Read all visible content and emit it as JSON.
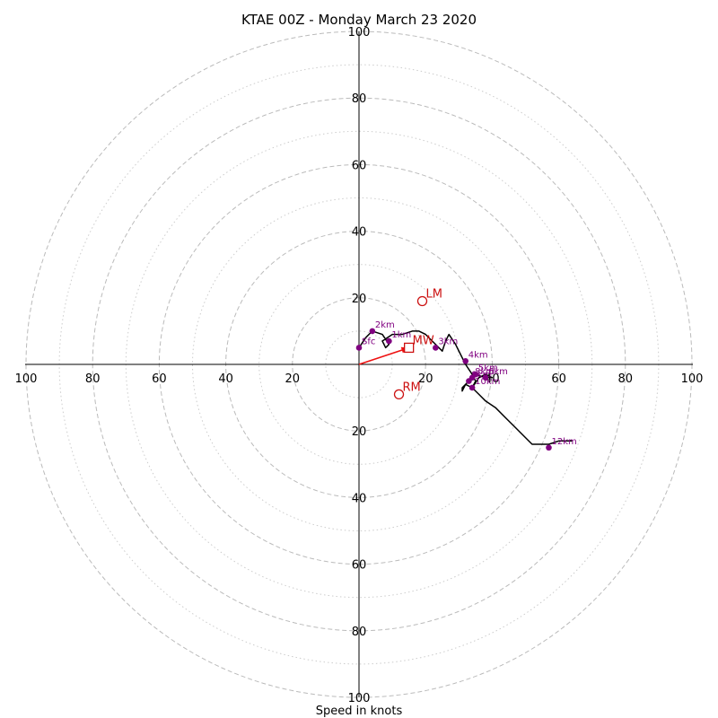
{
  "chart_data": {
    "type": "hodograph",
    "title": "KTAE 00Z - Monday March 23 2020",
    "xlabel": "Speed in knots",
    "ring_range": [
      0,
      100
    ],
    "solid_rings": [
      20,
      40,
      60,
      80,
      100
    ],
    "dotted_rings": [
      10,
      30,
      50,
      70,
      90
    ],
    "axis_tick_labels": {
      "top": [
        "20",
        "40",
        "60",
        "80",
        "100"
      ],
      "bottom": [
        "20",
        "40",
        "60",
        "80",
        "100"
      ],
      "left": [
        "20",
        "40",
        "60",
        "80",
        "100"
      ],
      "right": [
        "20",
        "40",
        "60",
        "80",
        "100"
      ]
    },
    "hodograph_trace": [
      [
        0,
        5
      ],
      [
        2,
        8
      ],
      [
        4,
        10
      ],
      [
        7,
        9
      ],
      [
        9,
        6
      ],
      [
        8,
        5
      ],
      [
        7,
        7
      ],
      [
        10,
        9
      ],
      [
        13,
        9
      ],
      [
        16,
        10
      ],
      [
        18,
        10
      ],
      [
        20,
        9
      ],
      [
        22,
        7
      ],
      [
        24,
        5
      ],
      [
        25,
        4
      ],
      [
        26,
        7
      ],
      [
        27,
        9
      ],
      [
        29,
        6
      ],
      [
        31,
        2
      ],
      [
        32,
        0
      ],
      [
        34,
        -3
      ],
      [
        35,
        -5
      ],
      [
        34,
        -7
      ],
      [
        36,
        -4
      ],
      [
        38,
        -3
      ],
      [
        40,
        -4
      ],
      [
        38,
        -4
      ],
      [
        35,
        -3
      ],
      [
        33,
        -5
      ],
      [
        32,
        -6
      ],
      [
        31,
        -7
      ],
      [
        31,
        -8
      ],
      [
        32,
        -6
      ],
      [
        34,
        -7
      ],
      [
        36,
        -9
      ],
      [
        38,
        -11
      ],
      [
        41,
        -13
      ],
      [
        44,
        -16
      ],
      [
        47,
        -19
      ],
      [
        50,
        -22
      ],
      [
        52,
        -24
      ],
      [
        55,
        -24
      ],
      [
        57,
        -24
      ],
      [
        60,
        -23
      ],
      [
        64,
        -23
      ]
    ],
    "height_levels": [
      {
        "label": "Sfc",
        "u": 0,
        "v": 5
      },
      {
        "label": "1km",
        "u": 9,
        "v": 7
      },
      {
        "label": "2km",
        "u": 4,
        "v": 10
      },
      {
        "label": "3km",
        "u": 23,
        "v": 5
      },
      {
        "label": "4km",
        "u": 32,
        "v": 1
      },
      {
        "label": "5km",
        "u": 35,
        "v": -3
      },
      {
        "label": "6km",
        "u": 38,
        "v": -4
      },
      {
        "label": "8km",
        "u": 34,
        "v": -4
      },
      {
        "label": "9km",
        "u": 33,
        "v": -5
      },
      {
        "label": "10km",
        "u": 34,
        "v": -7
      },
      {
        "label": "12km",
        "u": 57,
        "v": -25
      }
    ],
    "storm_motions": [
      {
        "label": "LM",
        "u": 19,
        "v": 19,
        "marker": "circle"
      },
      {
        "label": "RM",
        "u": 12,
        "v": -9,
        "marker": "circle"
      },
      {
        "label": "MW",
        "u": 15,
        "v": 5,
        "marker": "square"
      }
    ],
    "mean_wind_vector": {
      "from": [
        0,
        0
      ],
      "to": [
        15,
        5
      ]
    },
    "colors": {
      "trace": "#000000",
      "levels": "#800080",
      "storm_motion": "#cc1111",
      "vector": "#ee1111",
      "rings": "#bbbbbb"
    }
  }
}
